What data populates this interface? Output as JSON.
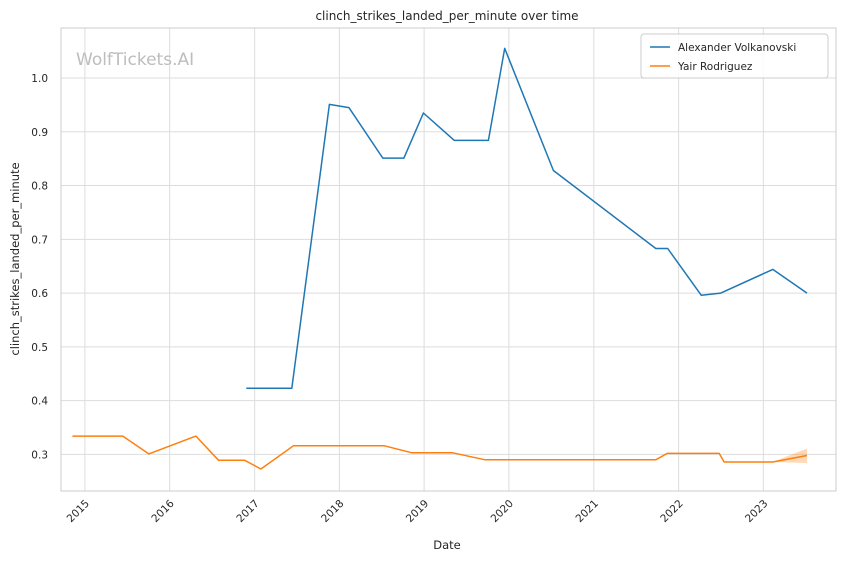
{
  "watermark": "WolfTickets.AI",
  "chart_data": {
    "type": "line",
    "title": "clinch_strikes_landed_per_minute over time",
    "xlabel": "Date",
    "ylabel": "clinch_strikes_landed_per_minute",
    "x_ticks": [
      "2015",
      "2016",
      "2017",
      "2018",
      "2019",
      "2020",
      "2021",
      "2022",
      "2023"
    ],
    "y_ticks": [
      "0.3",
      "0.4",
      "0.5",
      "0.6",
      "0.7",
      "0.8",
      "0.9",
      "1.0"
    ],
    "xlim": [
      "2014-09-20",
      "2023-11-10"
    ],
    "ylim": [
      0.232,
      1.093
    ],
    "grid": true,
    "legend_position": "top-right",
    "series": [
      {
        "name": "Alexander Volkanovski",
        "color": "#1f77b4",
        "points": [
          [
            "2016-11-26",
            0.423
          ],
          [
            "2017-06-10",
            0.423
          ],
          [
            "2017-11-19",
            0.951
          ],
          [
            "2018-02-11",
            0.945
          ],
          [
            "2018-07-07",
            0.851
          ],
          [
            "2018-10-06",
            0.851
          ],
          [
            "2018-12-29",
            0.935
          ],
          [
            "2019-05-11",
            0.884
          ],
          [
            "2019-10-05",
            0.884
          ],
          [
            "2019-12-14",
            1.055
          ],
          [
            "2020-07-11",
            0.828
          ],
          [
            "2021-09-25",
            0.683
          ],
          [
            "2021-11-15",
            0.683
          ],
          [
            "2022-04-09",
            0.596
          ],
          [
            "2022-07-02",
            0.6
          ],
          [
            "2023-02-11",
            0.644
          ],
          [
            "2023-07-08",
            0.6
          ]
        ]
      },
      {
        "name": "Yair Rodriguez",
        "color": "#ff7f0e",
        "points": [
          [
            "2014-11-08",
            0.334
          ],
          [
            "2015-06-13",
            0.334
          ],
          [
            "2015-10-03",
            0.301
          ],
          [
            "2016-04-23",
            0.334
          ],
          [
            "2016-07-30",
            0.289
          ],
          [
            "2016-11-19",
            0.289
          ],
          [
            "2017-01-28",
            0.273
          ],
          [
            "2017-06-17",
            0.316
          ],
          [
            "2018-07-14",
            0.316
          ],
          [
            "2018-11-10",
            0.303
          ],
          [
            "2019-05-04",
            0.303
          ],
          [
            "2019-09-21",
            0.29
          ],
          [
            "2021-09-25",
            0.29
          ],
          [
            "2021-11-13",
            0.302
          ],
          [
            "2022-06-25",
            0.302
          ],
          [
            "2022-07-16",
            0.286
          ],
          [
            "2023-02-11",
            0.286
          ],
          [
            "2023-07-08",
            0.298
          ]
        ],
        "band": [
          [
            "2023-02-11",
            0.286,
            0.286
          ],
          [
            "2023-07-08",
            0.284,
            0.311
          ]
        ]
      }
    ]
  }
}
